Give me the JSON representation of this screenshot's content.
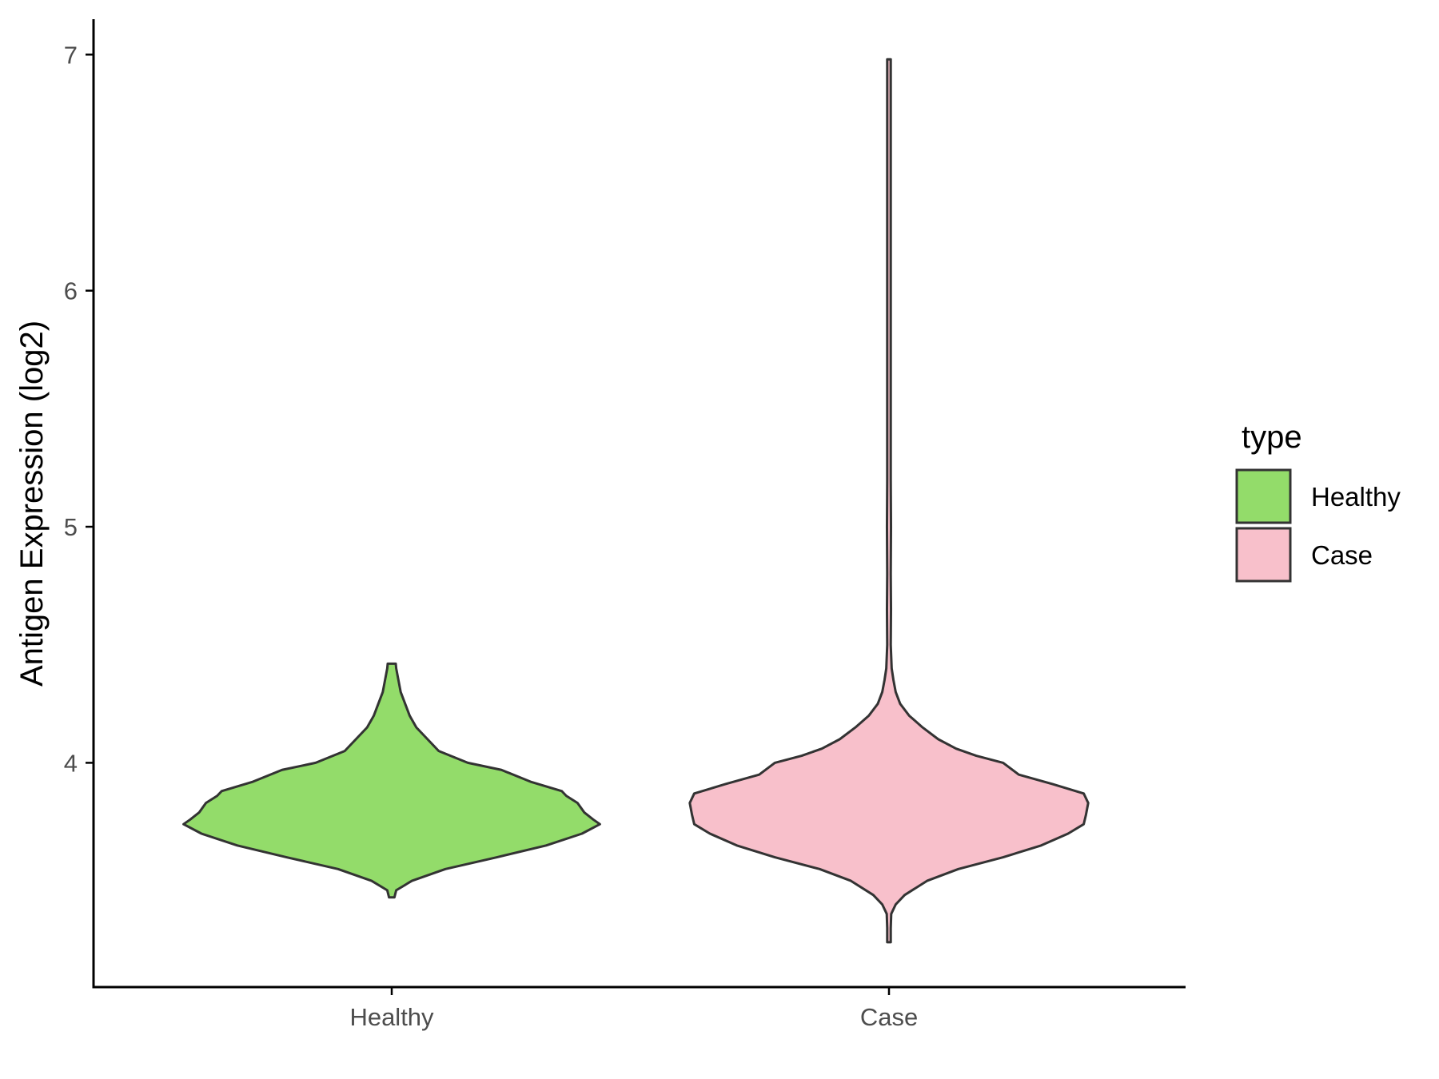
{
  "chart_data": {
    "type": "violin",
    "title": "",
    "xlabel": "",
    "ylabel": "Antigen Expression (log2)",
    "categories": [
      "Healthy",
      "Case"
    ],
    "ylim": [
      3.05,
      7.15
    ],
    "yticks": [
      "4",
      "5",
      "6",
      "7"
    ],
    "grid": false,
    "legend": {
      "title": "type",
      "position": "right",
      "entries": [
        {
          "label": "Healthy",
          "color": "#93dc6a"
        },
        {
          "label": "Case",
          "color": "#f8c0cb"
        }
      ]
    },
    "series": [
      {
        "name": "Healthy",
        "color": "#93dc6a",
        "min": 3.43,
        "max": 4.42,
        "profile": [
          [
            3.43,
            0.012
          ],
          [
            3.46,
            0.02
          ],
          [
            3.5,
            0.09
          ],
          [
            3.55,
            0.24
          ],
          [
            3.6,
            0.47
          ],
          [
            3.65,
            0.69
          ],
          [
            3.7,
            0.85
          ],
          [
            3.74,
            0.93
          ],
          [
            3.76,
            0.9
          ],
          [
            3.79,
            0.86
          ],
          [
            3.83,
            0.83
          ],
          [
            3.86,
            0.78
          ],
          [
            3.88,
            0.76
          ],
          [
            3.92,
            0.62
          ],
          [
            3.97,
            0.49
          ],
          [
            4.0,
            0.34
          ],
          [
            4.05,
            0.21
          ],
          [
            4.1,
            0.16
          ],
          [
            4.15,
            0.11
          ],
          [
            4.2,
            0.08
          ],
          [
            4.25,
            0.06
          ],
          [
            4.3,
            0.04
          ],
          [
            4.35,
            0.03
          ],
          [
            4.4,
            0.02
          ],
          [
            4.42,
            0.018
          ]
        ]
      },
      {
        "name": "Case",
        "color": "#f8c0cb",
        "min": 3.24,
        "max": 6.98,
        "profile": [
          [
            3.24,
            0.006
          ],
          [
            3.3,
            0.007
          ],
          [
            3.36,
            0.01
          ],
          [
            3.4,
            0.03
          ],
          [
            3.44,
            0.07
          ],
          [
            3.5,
            0.17
          ],
          [
            3.55,
            0.31
          ],
          [
            3.6,
            0.51
          ],
          [
            3.65,
            0.68
          ],
          [
            3.7,
            0.8
          ],
          [
            3.74,
            0.87
          ],
          [
            3.78,
            0.88
          ],
          [
            3.83,
            0.89
          ],
          [
            3.87,
            0.87
          ],
          [
            3.91,
            0.73
          ],
          [
            3.95,
            0.58
          ],
          [
            4.0,
            0.51
          ],
          [
            4.03,
            0.39
          ],
          [
            4.06,
            0.3
          ],
          [
            4.1,
            0.22
          ],
          [
            4.15,
            0.15
          ],
          [
            4.2,
            0.09
          ],
          [
            4.25,
            0.05
          ],
          [
            4.3,
            0.03
          ],
          [
            4.35,
            0.02
          ],
          [
            4.4,
            0.012
          ],
          [
            4.5,
            0.007
          ],
          [
            4.65,
            0.009
          ],
          [
            4.8,
            0.006
          ],
          [
            5.0,
            0.009
          ],
          [
            5.2,
            0.006
          ],
          [
            6.0,
            0.006
          ],
          [
            6.98,
            0.006
          ]
        ]
      }
    ]
  }
}
